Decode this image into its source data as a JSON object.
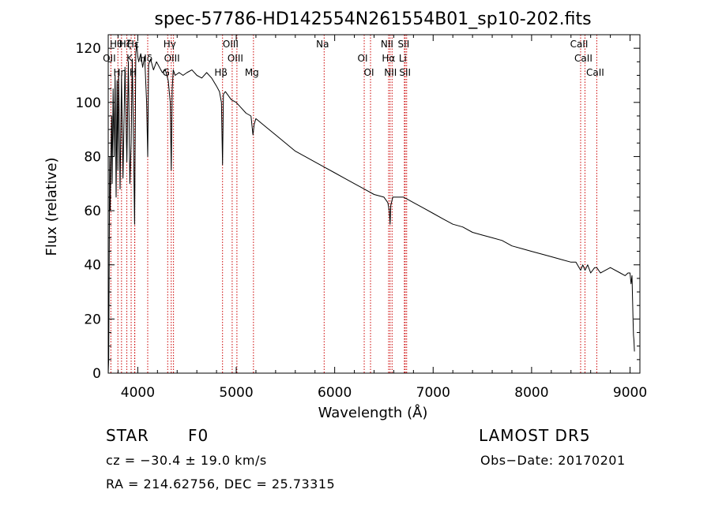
{
  "chart_data": {
    "type": "line",
    "title": "spec-57786-HD142554N261554B01_sp10-202.fits",
    "xlabel": "Wavelength (Å)",
    "ylabel": "Flux (relative)",
    "xlim": [
      3700,
      9100
    ],
    "ylim": [
      0,
      125
    ],
    "x_ticks": [
      4000,
      5000,
      6000,
      7000,
      8000,
      9000
    ],
    "y_ticks": [
      0,
      20,
      40,
      60,
      80,
      100,
      120
    ],
    "grid": false,
    "series": [
      {
        "x": [
          3700,
          3705,
          3710,
          3715,
          3720,
          3730,
          3735,
          3740,
          3750,
          3760,
          3770,
          3780,
          3790,
          3798,
          3805,
          3820,
          3835,
          3850,
          3870,
          3889,
          3905,
          3920,
          3933,
          3945,
          3955,
          3968,
          3980,
          3990,
          4000,
          4010,
          4030,
          4050,
          4070,
          4090,
          4101,
          4110,
          4130,
          4160,
          4190,
          4220,
          4250,
          4280,
          4310,
          4330,
          4340,
          4350,
          4360,
          4380,
          4420,
          4460,
          4500,
          4550,
          4600,
          4650,
          4700,
          4750,
          4800,
          4830,
          4850,
          4861,
          4870,
          4890,
          4950,
          5000,
          5050,
          5100,
          5150,
          5170,
          5183,
          5200,
          5300,
          5400,
          5500,
          5600,
          5700,
          5800,
          5900,
          6000,
          6100,
          6200,
          6300,
          6400,
          6500,
          6540,
          6555,
          6563,
          6570,
          6590,
          6650,
          6700,
          6800,
          6900,
          7000,
          7100,
          7200,
          7300,
          7400,
          7500,
          7600,
          7700,
          7800,
          7900,
          8000,
          8100,
          8200,
          8300,
          8400,
          8450,
          8498,
          8520,
          8542,
          8570,
          8600,
          8640,
          8662,
          8700,
          8800,
          8900,
          8950,
          8980,
          9000,
          9010,
          9020,
          9030,
          9035,
          9040,
          9045
        ],
        "y": [
          0,
          5,
          40,
          80,
          60,
          85,
          95,
          70,
          105,
          80,
          110,
          65,
          108,
          75,
          112,
          68,
          110,
          72,
          113,
          78,
          115,
          70,
          85,
          116,
          90,
          55,
          118,
          122,
          117,
          115,
          118,
          113,
          117,
          100,
          80,
          114,
          116,
          112,
          115,
          113,
          111,
          112,
          108,
          100,
          75,
          105,
          112,
          110,
          111,
          110,
          111,
          112,
          110,
          109,
          111,
          109,
          106,
          104,
          100,
          77,
          103,
          104,
          101,
          100,
          98,
          96,
          95,
          88,
          92,
          94,
          91,
          88,
          85,
          82,
          80,
          78,
          76,
          74,
          72,
          70,
          68,
          66,
          65,
          63,
          60,
          55,
          62,
          65,
          65,
          65,
          63,
          61,
          59,
          57,
          55,
          54,
          52,
          51,
          50,
          49,
          47,
          46,
          45,
          44,
          43,
          42,
          41,
          41,
          38,
          40,
          38,
          40,
          37,
          39,
          39,
          37,
          39,
          37,
          36,
          37,
          37,
          33,
          36,
          20,
          14,
          12,
          8
        ]
      }
    ],
    "line_markers": [
      {
        "label": "Hθ",
        "wavelength": 3798
      },
      {
        "label": "OII",
        "wavelength": 3727
      },
      {
        "label": "Hη",
        "wavelength": 3835
      },
      {
        "label": "Hζ",
        "wavelength": 3889
      },
      {
        "label": "K",
        "wavelength": 3933
      },
      {
        "label": "H",
        "wavelength": 3968
      },
      {
        "label": "Hε",
        "wavelength": 3970
      },
      {
        "label": "Hδ",
        "wavelength": 4101
      },
      {
        "label": "G",
        "wavelength": 4304
      },
      {
        "label": "Hγ",
        "wavelength": 4340
      },
      {
        "label": "OIII",
        "wavelength": 4363
      },
      {
        "label": "Hβ",
        "wavelength": 4861
      },
      {
        "label": "OIII",
        "wavelength": 4959
      },
      {
        "label": "OIII",
        "wavelength": 5007
      },
      {
        "label": "Mg",
        "wavelength": 5175
      },
      {
        "label": "Na",
        "wavelength": 5893
      },
      {
        "label": "OI",
        "wavelength": 6300
      },
      {
        "label": "OI",
        "wavelength": 6364
      },
      {
        "label": "NII",
        "wavelength": 6548
      },
      {
        "label": "Hα",
        "wavelength": 6563
      },
      {
        "label": "NII",
        "wavelength": 6583
      },
      {
        "label": "SII",
        "wavelength": 6716
      },
      {
        "label": "Li",
        "wavelength": 6708
      },
      {
        "label": "SII",
        "wavelength": 6731
      },
      {
        "label": "CaII",
        "wavelength": 8498
      },
      {
        "label": "CaII",
        "wavelength": 8542
      },
      {
        "label": "CaII",
        "wavelength": 8662
      }
    ]
  },
  "info": {
    "object_class": "STAR",
    "subclass": "F0",
    "survey": "LAMOST DR5",
    "redshift_line": "cz = −30.4 ± 19.0 km/s",
    "obs_date": "Obs−Date: 20170201",
    "coords": "RA = 214.62756, DEC =  25.73315"
  },
  "colors": {
    "spectrum": "#000000",
    "marker": "#cc0000",
    "background": "#ffffff"
  }
}
